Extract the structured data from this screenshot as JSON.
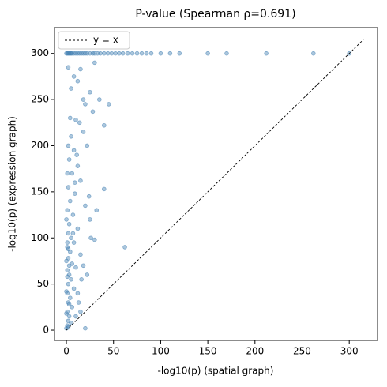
{
  "chart_data": {
    "type": "scatter",
    "title": "P-value (Spearman ρ=0.691)",
    "x_label": "-log10(p) (spatial graph)",
    "y_label": "-log10(p) (expression graph)",
    "color": "#4682b4",
    "x": [
      0,
      1,
      2,
      3,
      4,
      5,
      6,
      8,
      10,
      12,
      14,
      16,
      18,
      20,
      22,
      25,
      28,
      30,
      33,
      36,
      40,
      44,
      48,
      52,
      56,
      60,
      65,
      70,
      75,
      80,
      85,
      90,
      100,
      110,
      120,
      150,
      170,
      212,
      262,
      300,
      2,
      8,
      15,
      30,
      12,
      25,
      35,
      5,
      20,
      45,
      28,
      10,
      40,
      18,
      5,
      22,
      8,
      3,
      12,
      6,
      15,
      2,
      40,
      9,
      4,
      20,
      1,
      7,
      25,
      3,
      12,
      2,
      5,
      30,
      8,
      1,
      62,
      4,
      15,
      2,
      6,
      10,
      1,
      3,
      5,
      2,
      8,
      1,
      4,
      2,
      6,
      1,
      3,
      2,
      1,
      0,
      5,
      10,
      20,
      15,
      3,
      1,
      2,
      4,
      0,
      1,
      2,
      0,
      1,
      0,
      3,
      0,
      2,
      12,
      16,
      7,
      9,
      11,
      14,
      18,
      24,
      32,
      26,
      18,
      13,
      22
    ],
    "values": [
      300,
      300,
      300,
      300,
      300,
      300,
      300,
      300,
      300,
      300,
      300,
      300,
      300,
      300,
      300,
      300,
      300,
      300,
      300,
      300,
      300,
      300,
      300,
      300,
      300,
      300,
      300,
      300,
      300,
      300,
      300,
      300,
      300,
      300,
      300,
      300,
      300,
      300,
      300,
      300,
      285,
      275,
      283,
      290,
      270,
      258,
      250,
      262,
      245,
      245,
      237,
      228,
      222,
      215,
      210,
      200,
      195,
      185,
      178,
      170,
      162,
      155,
      153,
      148,
      140,
      135,
      130,
      125,
      120,
      115,
      110,
      105,
      100,
      98,
      95,
      90,
      90,
      85,
      82,
      78,
      72,
      68,
      65,
      60,
      55,
      50,
      45,
      40,
      35,
      30,
      25,
      20,
      15,
      10,
      5,
      2,
      8,
      15,
      2,
      20,
      70,
      170,
      200,
      230,
      120,
      95,
      88,
      75,
      58,
      42,
      28,
      18,
      3,
      40,
      55,
      105,
      160,
      190,
      225,
      250,
      145,
      130,
      100,
      70,
      30,
      60
    ],
    "lines": [
      {
        "name": "y = x",
        "x": [
          0,
          315
        ],
        "values": [
          0,
          315
        ],
        "color": "#000000",
        "dashed": true
      }
    ],
    "legend": "upper left",
    "xlim": [
      -12.6,
      330
    ],
    "ylim": [
      -11.1,
      328
    ],
    "xticks": [
      0,
      50,
      100,
      150,
      200,
      250,
      300
    ],
    "yticks": [
      0,
      50,
      100,
      150,
      200,
      250,
      300
    ]
  }
}
